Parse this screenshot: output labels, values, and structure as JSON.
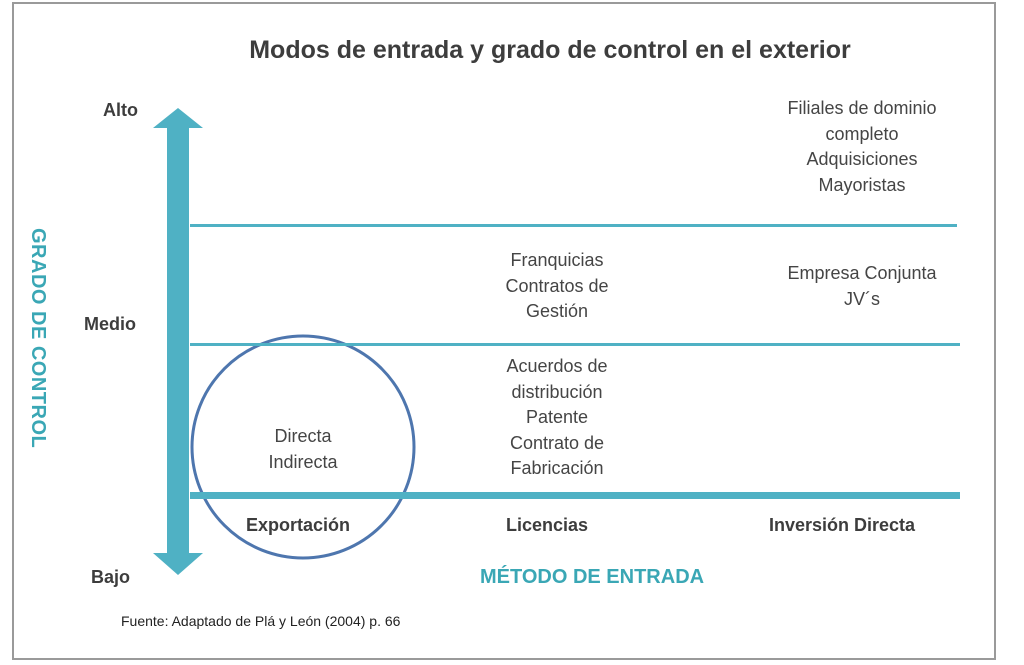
{
  "title": "Modos de entrada y grado de control en el exterior",
  "y_axis": {
    "title": "GRADO DE CONTROL",
    "levels": {
      "high": "Alto",
      "medium": "Medio",
      "low": "Bajo"
    }
  },
  "x_axis": {
    "title": "MÉTODO DE ENTRADA",
    "categories": [
      "Exportación",
      "Licencias",
      "Inversión Directa"
    ]
  },
  "cells": {
    "inversion_alto": [
      "Filiales de dominio",
      "completo",
      "Adquisiciones",
      "Mayoristas"
    ],
    "licencias_medio": [
      "Franquicias",
      "Contratos de",
      "Gestión"
    ],
    "inversion_medio": [
      "Empresa Conjunta",
      "JV´s"
    ],
    "licencias_bajo": [
      "Acuerdos de",
      "distribución",
      "Patente",
      "Contrato de",
      "Fabricación"
    ],
    "exportacion_bajo": [
      "Directa",
      "Indirecta"
    ]
  },
  "source": "Fuente: Adaptado de Plá y León (2004) p. 66",
  "colors": {
    "accent": "#4fb1c4",
    "axis_title": "#3aa7b5",
    "circle": "#4e76ae",
    "text": "#3d3d3d"
  }
}
